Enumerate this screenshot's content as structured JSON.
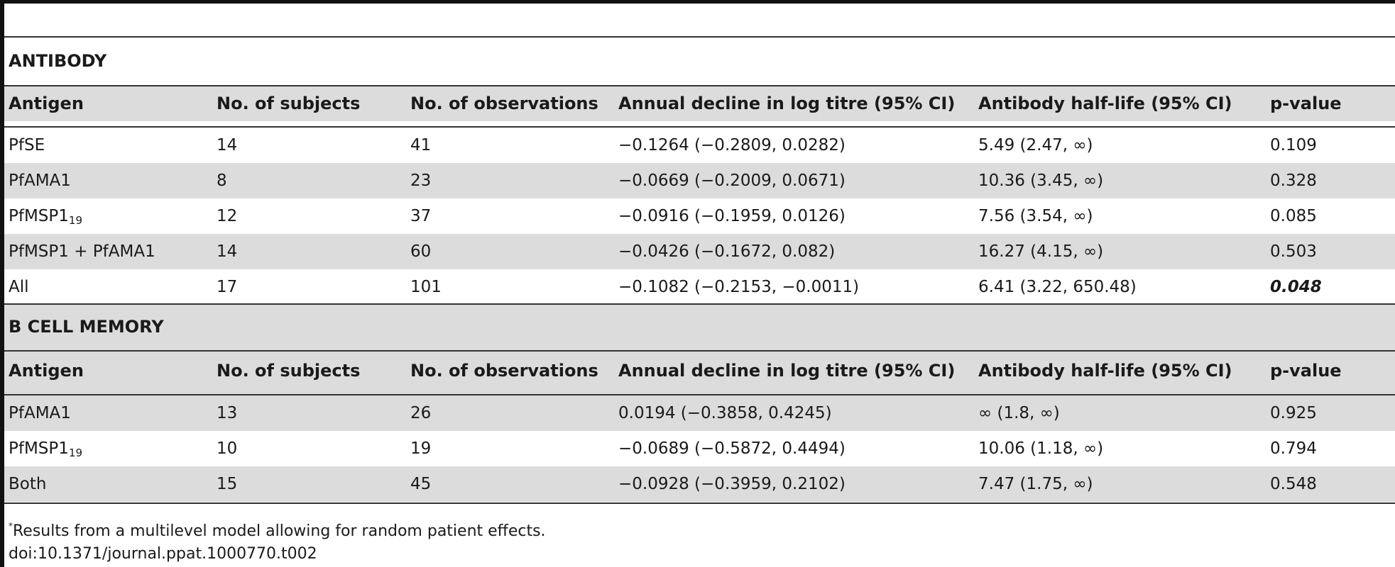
{
  "sections": [
    {
      "title": "ANTIBODY",
      "headers": [
        "Antigen",
        "No. of subjects",
        "No. of observations",
        "Annual decline in log titre (95% CI)",
        "Antibody half-life (95% CI)",
        "p-value"
      ],
      "rows": [
        {
          "antigen": "PfSE",
          "subjects": "14",
          "observations": "41",
          "decline": "−0.1264 (−0.2809, 0.0282)",
          "half_life": "5.49 (2.47, ∞)",
          "p_value": "0.109"
        },
        {
          "antigen": "PfAMA1",
          "subjects": "8",
          "observations": "23",
          "decline": "−0.0669 (−0.2009, 0.0671)",
          "half_life": "10.36 (3.45, ∞)",
          "p_value": "0.328"
        },
        {
          "antigen": "PfMSP1",
          "antigen_sub": "19",
          "subjects": "12",
          "observations": "37",
          "decline": "−0.0916 (−0.1959, 0.0126)",
          "half_life": "7.56 (3.54, ∞)",
          "p_value": "0.085"
        },
        {
          "antigen": "PfMSP1 + PfAMA1",
          "subjects": "14",
          "observations": "60",
          "decline": "−0.0426 (−0.1672, 0.082)",
          "half_life": "16.27 (4.15, ∞)",
          "p_value": "0.503"
        },
        {
          "antigen": "All",
          "subjects": "17",
          "observations": "101",
          "decline": "−0.1082 (−0.2153, −0.0011)",
          "half_life": "6.41 (3.22, 650.48)",
          "p_value": "0.048"
        }
      ]
    },
    {
      "title": "B CELL MEMORY",
      "headers": [
        "Antigen",
        "No. of subjects",
        "No. of observations",
        "Annual decline in log titre (95% CI)",
        "Antibody half-life (95% CI)",
        "p-value"
      ],
      "rows": [
        {
          "antigen": "PfAMA1",
          "subjects": "13",
          "observations": "26",
          "decline": "0.0194 (−0.3858, 0.4245)",
          "half_life": "∞ (1.8, ∞)",
          "p_value": "0.925"
        },
        {
          "antigen": "PfMSP1",
          "antigen_sub": "19",
          "subjects": "10",
          "observations": "19",
          "decline": "−0.0689 (−0.5872, 0.4494)",
          "half_life": "10.06 (1.18, ∞)",
          "p_value": "0.794"
        },
        {
          "antigen": "Both",
          "subjects": "15",
          "observations": "45",
          "decline": "−0.0928 (−0.3959, 0.2102)",
          "half_life": "7.47 (1.75, ∞)",
          "p_value": "0.548"
        }
      ]
    }
  ],
  "footnote": {
    "marker": "*",
    "text": "Results from a multilevel model allowing for random patient effects."
  },
  "doi": "doi:10.1371/journal.ppat.1000770.t002"
}
